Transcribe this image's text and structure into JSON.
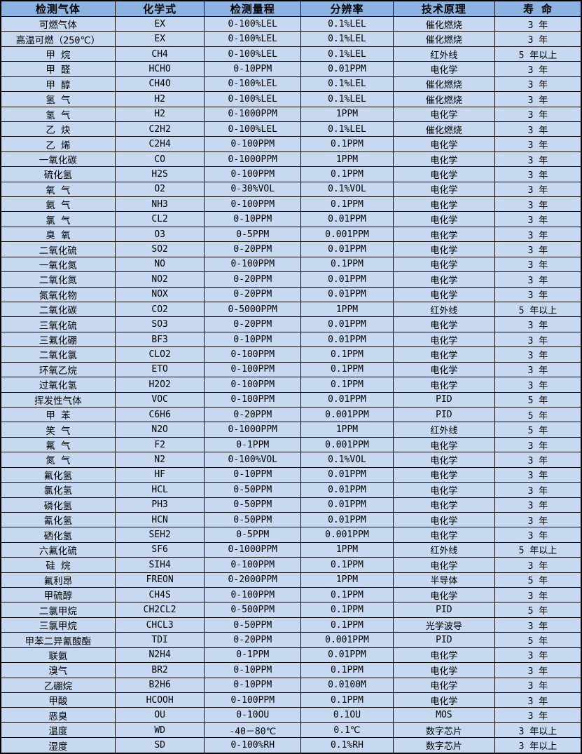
{
  "colors": {
    "header_bg": "#8DB3E2",
    "row_bg": "#C7D9F0",
    "border": "#000000",
    "text": "#000000"
  },
  "table": {
    "headers": [
      "检测气体",
      "化学式",
      "检测量程",
      "分辨率",
      "技术原理",
      "寿 命"
    ],
    "column_widths_pct": [
      19.7,
      15.4,
      16.6,
      15.9,
      17.5,
      14.9
    ],
    "rows": [
      [
        "可燃气体",
        "EX",
        "0-100%LEL",
        "0.1%LEL",
        "催化燃烧",
        "3 年"
      ],
      [
        "高温可燃（250℃）",
        "EX",
        "0-100%LEL",
        "0.1%LEL",
        "催化燃烧",
        "3 年"
      ],
      [
        "甲 烷",
        "CH4",
        "0-100%LEL",
        "0.1%LEL",
        "红外线",
        "5 年以上"
      ],
      [
        "甲 醛",
        "HCHO",
        "0-10PPM",
        "0.01PPM",
        "电化学",
        "3 年"
      ],
      [
        "甲 醇",
        "CH4O",
        "0-100%LEL",
        "0.1%LEL",
        "催化燃烧",
        "3 年"
      ],
      [
        "氢 气",
        "H2",
        "0-100%LEL",
        "0.1%LEL",
        "催化燃烧",
        "3 年"
      ],
      [
        "氢 气",
        "H2",
        "0-1000PPM",
        "1PPM",
        "电化学",
        "3 年"
      ],
      [
        "乙 炔",
        "C2H2",
        "0-100%LEL",
        "0.1%LEL",
        "催化燃烧",
        "3 年"
      ],
      [
        "乙 烯",
        "C2H4",
        "0-100PPM",
        "0.1PPM",
        "电化学",
        "3 年"
      ],
      [
        "一氧化碳",
        "CO",
        "0-1000PPM",
        "1PPM",
        "电化学",
        "3 年"
      ],
      [
        "硫化氢",
        "H2S",
        "0-100PPM",
        "0.1PPM",
        "电化学",
        "3 年"
      ],
      [
        "氧 气",
        "O2",
        "0-30%VOL",
        "0.1%VOL",
        "电化学",
        "3 年"
      ],
      [
        "氨 气",
        "NH3",
        "0-100PPM",
        "0.1PPM",
        "电化学",
        "3 年"
      ],
      [
        "氯 气",
        "CL2",
        "0-10PPM",
        "0.01PPM",
        "电化学",
        "3 年"
      ],
      [
        "臭 氧",
        "O3",
        "0-5PPM",
        "0.001PPM",
        "电化学",
        "3 年"
      ],
      [
        "二氧化硫",
        "SO2",
        "0-20PPM",
        "0.01PPM",
        "电化学",
        "3 年"
      ],
      [
        "一氧化氮",
        "NO",
        "0-100PPM",
        "0.1PPM",
        "电化学",
        "3 年"
      ],
      [
        "二氧化氮",
        "NO2",
        "0-20PPM",
        "0.01PPM",
        "电化学",
        "3 年"
      ],
      [
        "氮氧化物",
        "NOX",
        "0-20PPM",
        "0.01PPM",
        "电化学",
        "3 年"
      ],
      [
        "二氧化碳",
        "CO2",
        "0-5000PPM",
        "1PPM",
        "红外线",
        "5 年以上"
      ],
      [
        "三氧化硫",
        "SO3",
        "0-20PPM",
        "0.01PPM",
        "电化学",
        "3 年"
      ],
      [
        "三氟化硼",
        "BF3",
        "0-10PPM",
        "0.01PPM",
        "电化学",
        "3 年"
      ],
      [
        "二氧化氯",
        "CLO2",
        "0-100PPM",
        "0.1PPM",
        "电化学",
        "3 年"
      ],
      [
        "环氧乙烷",
        "ETO",
        "0-100PPM",
        "0.1PPM",
        "电化学",
        "3 年"
      ],
      [
        "过氧化氢",
        "H2O2",
        "0-100PPM",
        "0.1PPM",
        "电化学",
        "3 年"
      ],
      [
        "挥发性气体",
        "VOC",
        "0-100PPM",
        "0.01PPM",
        "PID",
        "5 年"
      ],
      [
        "甲 苯",
        "C6H6",
        "0-20PPM",
        "0.001PPM",
        "PID",
        "5 年"
      ],
      [
        "笑 气",
        "N2O",
        "0-1000PPM",
        "1PPM",
        "红外线",
        "5 年"
      ],
      [
        "氟 气",
        "F2",
        "0-1PPM",
        "0.001PPM",
        "电化学",
        "3 年"
      ],
      [
        "氮 气",
        "N2",
        "0-100%VOL",
        "0.1%VOL",
        "电化学",
        "3 年"
      ],
      [
        "氟化氢",
        "HF",
        "0-10PPM",
        "0.01PPM",
        "电化学",
        "3 年"
      ],
      [
        "氯化氢",
        "HCL",
        "0-50PPM",
        "0.01PPM",
        "电化学",
        "3 年"
      ],
      [
        "磷化氢",
        "PH3",
        "0-50PPM",
        "0.01PPM",
        "电化学",
        "3 年"
      ],
      [
        "氰化氢",
        "HCN",
        "0-50PPM",
        "0.01PPM",
        "电化学",
        "3 年"
      ],
      [
        "硒化氢",
        "SEH2",
        "0-5PPM",
        "0.001PPM",
        "电化学",
        "3 年"
      ],
      [
        "六氟化硫",
        "SF6",
        "0-1000PPM",
        "1PPM",
        "红外线",
        "5 年以上"
      ],
      [
        "硅 烷",
        "SIH4",
        "0-100PPM",
        "0.1PPM",
        "电化学",
        "3 年"
      ],
      [
        "氟利昂",
        "FREON",
        "0-2000PPM",
        "1PPM",
        "半导体",
        "5 年"
      ],
      [
        "甲硫醇",
        "CH4S",
        "0-100PPM",
        "0.1PPM",
        "电化学",
        "3 年"
      ],
      [
        "二氯甲烷",
        "CH2CL2",
        "0-500PPM",
        "0.1PPM",
        "PID",
        "5 年"
      ],
      [
        "三氯甲烷",
        "CHCL3",
        "0-50PPM",
        "0.1PPM",
        "光学波导",
        "3 年"
      ],
      [
        "甲苯二异氰酸酯",
        "TDI",
        "0-20PPM",
        "0.001PPM",
        "PID",
        "5 年"
      ],
      [
        "联氨",
        "N2H4",
        "0-1PPM",
        "0.01PPM",
        "电化学",
        "3 年"
      ],
      [
        "溴气",
        "BR2",
        "0-10PPM",
        "0.1PPM",
        "电化学",
        "3 年"
      ],
      [
        "乙硼烷",
        "B2H6",
        "0-10PPM",
        "0.0100M",
        "电化学",
        "3 年"
      ],
      [
        "甲酸",
        "HCOOH",
        "0-100PPM",
        "0.1PPM",
        "电化学",
        "3 年"
      ],
      [
        "恶臭",
        "OU",
        "0-10OU",
        "0.1OU",
        "MOS",
        "3 年"
      ],
      [
        "温度",
        "WD",
        "-40－80℃",
        "0.1℃",
        "数字芯片",
        "3 年以上"
      ],
      [
        "湿度",
        "SD",
        "0-100%RH",
        "0.1%RH",
        "数字芯片",
        "3 年以上"
      ]
    ]
  }
}
